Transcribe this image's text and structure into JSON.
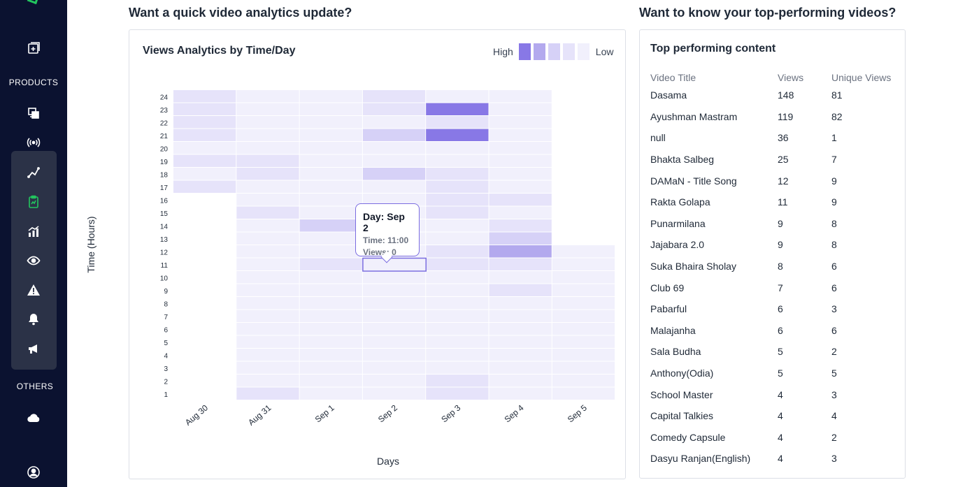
{
  "sidebar": {
    "sections": {
      "products": "PRODUCTS",
      "others": "OTHERS"
    },
    "icons": [
      "add-content-icon",
      "content-library-icon",
      "live-broadcast-icon",
      "analytics-line-icon",
      "clipboard-icon",
      "growth-chart-icon",
      "eye-icon",
      "alert-icon",
      "bell-icon",
      "megaphone-icon",
      "cloud-icon",
      "user-account-icon"
    ],
    "active_color": "#22c55e"
  },
  "analytics": {
    "section_title": "Want a quick video analytics update?",
    "card_title": "Views Analytics by Time/Day",
    "legend": {
      "high": "High",
      "low": "Low",
      "colors": [
        "#8878e6",
        "#b3a9ee",
        "#d6d1f7",
        "#e6e3fa",
        "#f1f0fc"
      ]
    },
    "tooltip": {
      "day": "Day: Sep 2",
      "time": "Time: 11:00",
      "views": "Views: 0"
    },
    "x_title": "Days",
    "y_title": "Time (Hours)"
  },
  "top": {
    "section_title": "Want to know your top-performing videos?",
    "card_title": "Top performing content",
    "columns": [
      "Video Title",
      "Views",
      "Unique Views"
    ],
    "rows": [
      [
        "Dasama",
        "148",
        "81"
      ],
      [
        "Ayushman Mastram",
        "119",
        "82"
      ],
      [
        "null",
        "36",
        "1"
      ],
      [
        "Bhakta Salbeg",
        "25",
        "7"
      ],
      [
        "DAMaN - Title Song",
        "12",
        "9"
      ],
      [
        "Rakta Golapa",
        "11",
        "9"
      ],
      [
        "Punarmilana",
        "9",
        "8"
      ],
      [
        "Jajabara 2.0",
        "9",
        "8"
      ],
      [
        "Suka Bhaira Sholay",
        "8",
        "6"
      ],
      [
        "Club 69",
        "7",
        "6"
      ],
      [
        "Pabarful",
        "6",
        "3"
      ],
      [
        "Malajanha",
        "6",
        "6"
      ],
      [
        "Sala Budha",
        "5",
        "2"
      ],
      [
        "Anthony(Odia)",
        "5",
        "5"
      ],
      [
        "School Master",
        "4",
        "3"
      ],
      [
        "Capital Talkies",
        "4",
        "4"
      ],
      [
        "Comedy Capsule",
        "4",
        "2"
      ],
      [
        "Dasyu Ranjan(English)",
        "4",
        "3"
      ]
    ]
  },
  "chart_data": {
    "type": "heatmap",
    "title": "Views Analytics by Time/Day",
    "xlabel": "Days",
    "ylabel": "Time (Hours)",
    "x": [
      "Aug 30",
      "Aug 31",
      "Sep 1",
      "Sep 2",
      "Sep 3",
      "Sep 4",
      "Sep 5"
    ],
    "y": [
      24,
      23,
      22,
      21,
      20,
      19,
      18,
      17,
      16,
      15,
      14,
      13,
      12,
      11,
      10,
      9,
      8,
      7,
      6,
      5,
      4,
      3,
      2,
      1
    ],
    "levels": [
      [
        3,
        4,
        4,
        3,
        4,
        4,
        null
      ],
      [
        3,
        4,
        4,
        3,
        0,
        4,
        null
      ],
      [
        3,
        4,
        4,
        4,
        3,
        4,
        null
      ],
      [
        3,
        4,
        4,
        2,
        0,
        4,
        null
      ],
      [
        4,
        4,
        4,
        4,
        4,
        4,
        null
      ],
      [
        3,
        3,
        4,
        4,
        4,
        4,
        null
      ],
      [
        4,
        3,
        4,
        2,
        3,
        4,
        null
      ],
      [
        3,
        4,
        4,
        4,
        3,
        4,
        null
      ],
      [
        null,
        4,
        4,
        4,
        3,
        3,
        null
      ],
      [
        null,
        3,
        4,
        4,
        3,
        4,
        null
      ],
      [
        null,
        4,
        2,
        4,
        4,
        3,
        null
      ],
      [
        null,
        4,
        4,
        4,
        4,
        2,
        null
      ],
      [
        null,
        4,
        4,
        4,
        3,
        1,
        4
      ],
      [
        null,
        4,
        3,
        4,
        3,
        3,
        4
      ],
      [
        null,
        4,
        4,
        4,
        4,
        4,
        4
      ],
      [
        null,
        4,
        4,
        4,
        4,
        3,
        4
      ],
      [
        null,
        4,
        4,
        4,
        4,
        4,
        4
      ],
      [
        null,
        4,
        4,
        4,
        4,
        4,
        4
      ],
      [
        null,
        4,
        4,
        4,
        4,
        4,
        4
      ],
      [
        null,
        4,
        4,
        4,
        4,
        4,
        4
      ],
      [
        null,
        4,
        4,
        4,
        4,
        4,
        4
      ],
      [
        null,
        4,
        4,
        4,
        4,
        4,
        4
      ],
      [
        null,
        4,
        4,
        4,
        3,
        4,
        4
      ],
      [
        null,
        3,
        4,
        4,
        3,
        4,
        4
      ]
    ],
    "level_colors": [
      "#8878e6",
      "#b3a9ee",
      "#d6d1f7",
      "#e6e3fa",
      "#f1f0fc"
    ],
    "highlighted_cell": {
      "x": "Sep 2",
      "y": 11
    }
  }
}
